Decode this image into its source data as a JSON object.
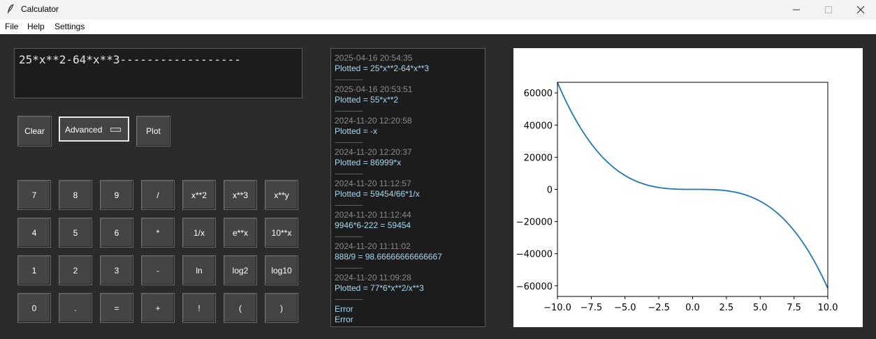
{
  "window": {
    "title": "Calculator",
    "controls": [
      "minimize",
      "maximize",
      "close"
    ]
  },
  "menu": {
    "items": [
      "File",
      "Help",
      "Settings"
    ]
  },
  "display": {
    "expression": "25*x**2-64*x**3------------------"
  },
  "controls": {
    "clear_label": "Clear",
    "mode_label": "Advanced",
    "plot_label": "Plot"
  },
  "keypad": {
    "rows": [
      [
        "7",
        "8",
        "9",
        "/",
        "x**2",
        "x**3",
        "x**y"
      ],
      [
        "4",
        "5",
        "6",
        "*",
        "1/x",
        "e**x",
        "10**x"
      ],
      [
        "1",
        "2",
        "3",
        "-",
        "ln",
        "log2",
        "log10"
      ],
      [
        "0",
        ".",
        "=",
        "+",
        "!",
        "(",
        ")"
      ]
    ]
  },
  "history": {
    "entries": [
      {
        "time": "2025-04-16 20:54:35",
        "result": "Plotted = 25*x**2-64*x**3",
        "separator": "--------------------"
      },
      {
        "time": "2025-04-16 20:53:51",
        "result": "Plotted = 55*x**2",
        "separator": "--------------------"
      },
      {
        "time": "2024-11-20 12:20:58",
        "result": "Plotted = -x",
        "separator": "--------------------"
      },
      {
        "time": "2024-11-20 12:20:37",
        "result": "Plotted = 86999*x",
        "separator": "--------------------"
      },
      {
        "time": "2024-11-20 11:12:57",
        "result": "Plotted = 59454/66*1/x",
        "separator": "--------------------"
      },
      {
        "time": "2024-11-20 11:12:44",
        "result": "9946*6-222 = 59454",
        "separator": "--------------------"
      },
      {
        "time": "2024-11-20 11:11:02",
        "result": "888/9 = 98.66666666666667",
        "separator": "--------------------"
      },
      {
        "time": "2024-11-20 11:09:28",
        "result": "Plotted = 77*6*x**2/x**3",
        "separator": "--------------------"
      }
    ],
    "errors": [
      "Error",
      "Error"
    ]
  },
  "chart_data": {
    "type": "line",
    "function": "25*x**2-64*x**3",
    "xlim": [
      -10,
      10
    ],
    "ylim": [
      -66600,
      66600
    ],
    "x_ticks": [
      -10.0,
      -7.5,
      -5.0,
      -2.5,
      0.0,
      2.5,
      5.0,
      7.5,
      10.0
    ],
    "x_tick_labels": [
      "−10.0",
      "−7.5",
      "−5.0",
      "−2.5",
      "0.0",
      "2.5",
      "5.0",
      "7.5",
      "10.0"
    ],
    "y_ticks": [
      60000,
      40000,
      20000,
      0,
      -20000,
      -40000,
      -60000
    ],
    "y_tick_labels": [
      "60000",
      "40000",
      "20000",
      "0",
      "−20000",
      "−40000",
      "−60000"
    ],
    "series": [
      {
        "color": "#1f77b4",
        "x": [
          -10,
          -9,
          -8,
          -7,
          -6,
          -5,
          -4,
          -3,
          -2,
          -1,
          0,
          1,
          2,
          3,
          4,
          5,
          6,
          7,
          8,
          9,
          10
        ],
        "y": [
          66500,
          48681,
          34368,
          23177,
          14724,
          8625,
          4496,
          1953,
          612,
          89,
          0,
          -39,
          -412,
          -1503,
          -3696,
          -7375,
          -12924,
          -20727,
          -31168,
          -44631,
          -61500
        ]
      }
    ],
    "grid": false,
    "title": "",
    "xlabel": "",
    "ylabel": ""
  }
}
